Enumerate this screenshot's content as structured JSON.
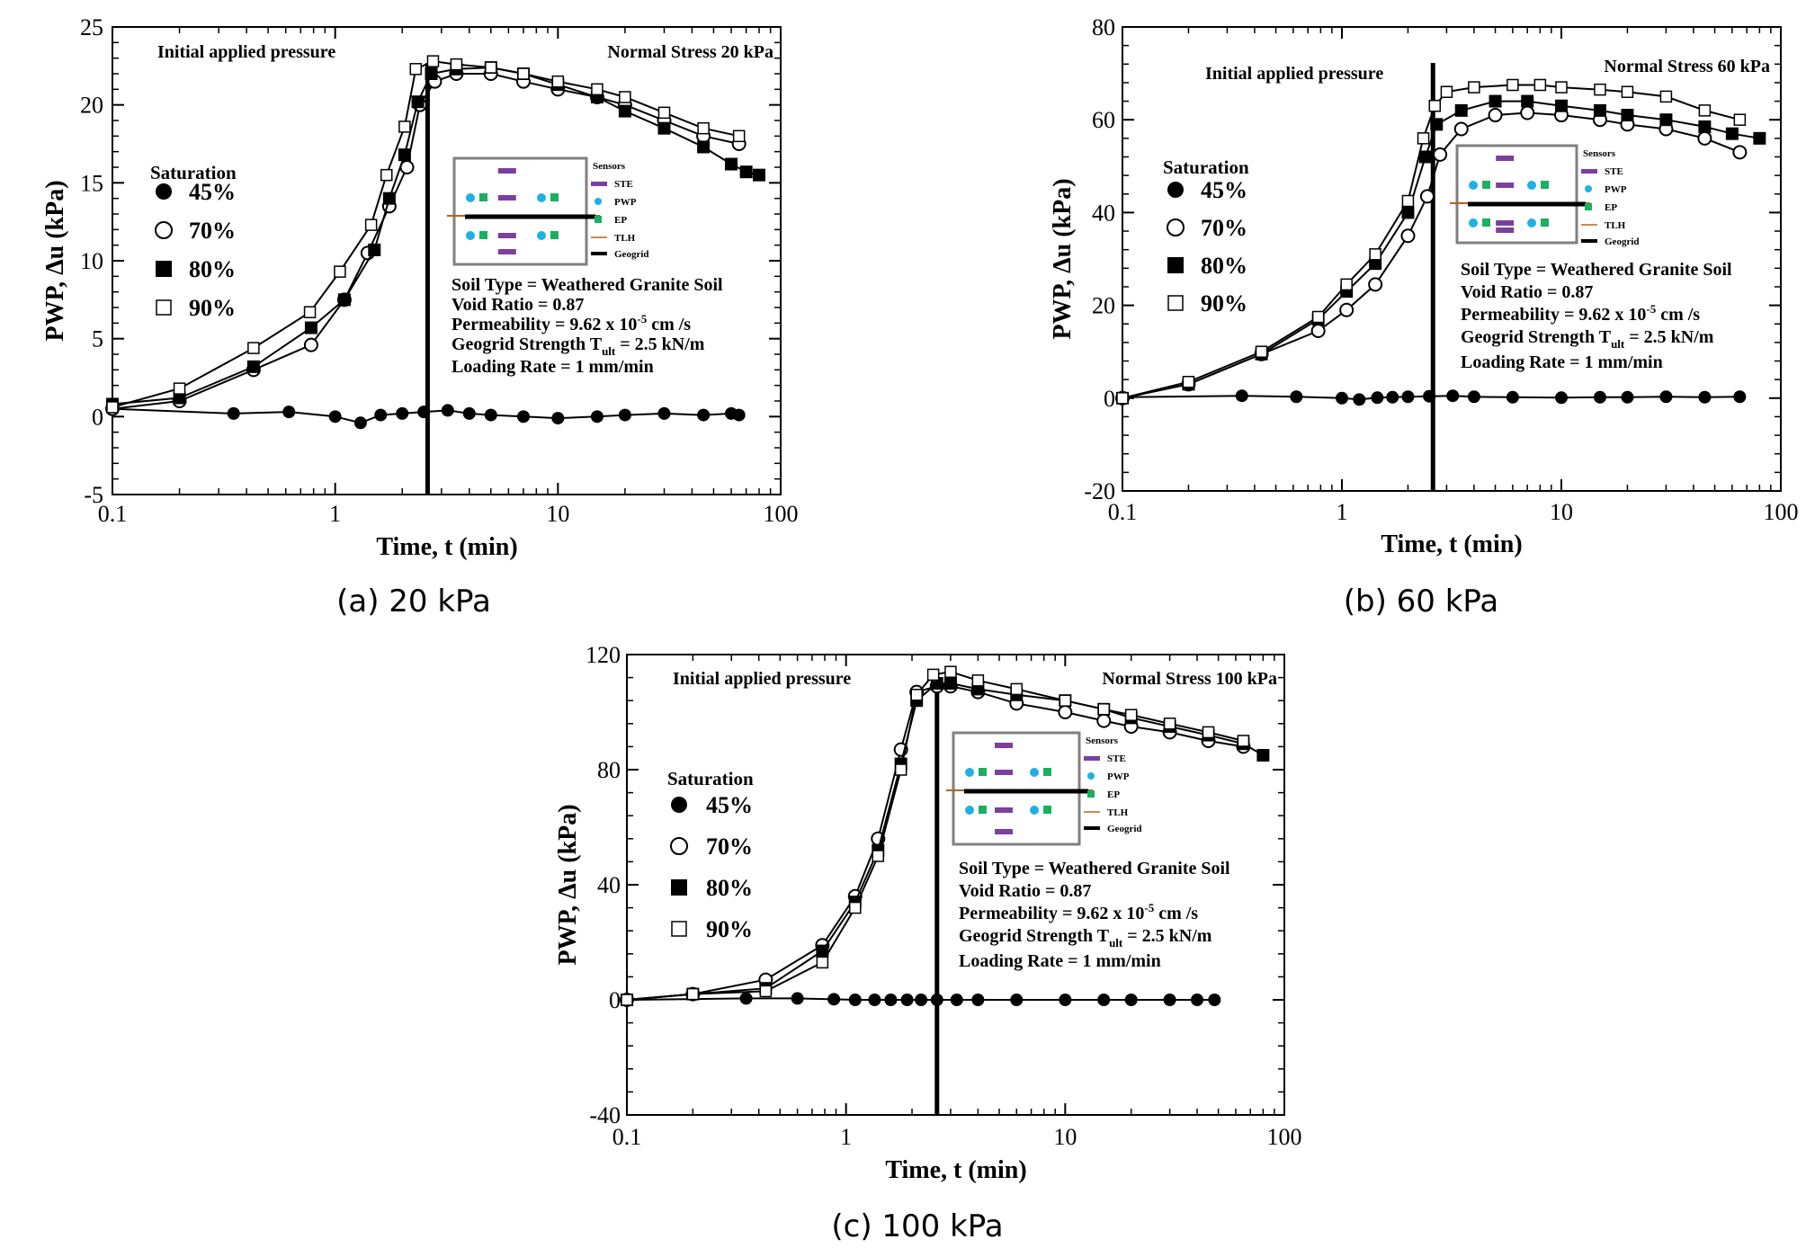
{
  "chart_data": [
    {
      "type": "scatter",
      "caption": "(a) 20 kPa",
      "xscale": "log",
      "xlim": [
        0.1,
        100
      ],
      "ylim": [
        -5,
        25
      ],
      "xticks": [
        "0.1",
        "1",
        "10",
        "100"
      ],
      "yticks": [
        "-5",
        "0",
        "5",
        "10",
        "15",
        "20",
        "25"
      ],
      "xlabel": "Time, t (min)",
      "ylabel": "PWP, Δu (kPa)",
      "note_left": "Initial applied pressure",
      "note_right": "Normal Stress 20 kPa",
      "vline_x": 2.6,
      "series": [
        {
          "name": "45%",
          "marker": "filled-circle",
          "x": [
            0.1,
            0.35,
            0.62,
            1.0,
            1.3,
            1.6,
            2.0,
            2.5,
            3.2,
            4.0,
            5.0,
            7.0,
            10,
            15,
            20,
            30,
            45,
            60,
            65
          ],
          "y": [
            0.5,
            0.2,
            0.3,
            0.0,
            -0.4,
            0.1,
            0.2,
            0.3,
            0.4,
            0.2,
            0.1,
            0.0,
            -0.1,
            0.0,
            0.1,
            0.2,
            0.1,
            0.2,
            0.1
          ]
        },
        {
          "name": "70%",
          "marker": "open-circle",
          "x": [
            0.1,
            0.2,
            0.43,
            0.78,
            1.1,
            1.4,
            1.75,
            2.1,
            2.4,
            2.8,
            3.5,
            5,
            7,
            10,
            15,
            20,
            30,
            45,
            65
          ],
          "y": [
            0.5,
            1.0,
            3.0,
            4.6,
            7.5,
            10.5,
            13.5,
            16.0,
            20.0,
            21.5,
            22.0,
            22.0,
            21.5,
            21.0,
            20.5,
            20.0,
            19.0,
            18.0,
            17.5
          ]
        },
        {
          "name": "80%",
          "marker": "filled-square",
          "x": [
            0.1,
            0.2,
            0.43,
            0.78,
            1.1,
            1.5,
            1.75,
            2.05,
            2.35,
            2.7,
            3.5,
            5,
            7,
            10,
            15,
            20,
            30,
            45,
            60,
            70,
            80
          ],
          "y": [
            0.8,
            1.2,
            3.2,
            5.7,
            7.5,
            10.7,
            14.0,
            16.8,
            20.2,
            22.0,
            22.3,
            22.4,
            22.0,
            21.3,
            20.5,
            19.6,
            18.5,
            17.3,
            16.2,
            15.7,
            15.5
          ]
        },
        {
          "name": "90%",
          "marker": "open-square",
          "x": [
            0.1,
            0.2,
            0.43,
            0.77,
            1.05,
            1.45,
            1.7,
            2.05,
            2.3,
            2.75,
            3.5,
            5,
            7,
            10,
            15,
            20,
            30,
            45,
            65
          ],
          "y": [
            0.6,
            1.8,
            4.4,
            6.7,
            9.3,
            12.3,
            15.5,
            18.6,
            22.3,
            22.8,
            22.6,
            22.4,
            22.0,
            21.5,
            21.0,
            20.5,
            19.5,
            18.5,
            18.0
          ]
        }
      ],
      "legend": {
        "title": "Saturation",
        "entries": [
          "45%",
          "70%",
          "80%",
          "90%"
        ]
      },
      "info": [
        "Soil Type = Weathered Granite Soil",
        "Void Ratio = 0.87",
        "Permeability = 9.62 x 10",
        "-5",
        " cm /s",
        "Geogrid Strength T",
        "ult",
        " = 2.5 kN/m",
        "Loading Rate = 1 mm/min"
      ],
      "sensors": {
        "title": "Sensors",
        "items": [
          "STE",
          "PWP",
          "EP",
          "TLH",
          "Geogrid"
        ]
      }
    },
    {
      "type": "scatter",
      "caption": "(b) 60 kPa",
      "xscale": "log",
      "xlim": [
        0.1,
        100
      ],
      "ylim": [
        -20,
        80
      ],
      "xticks": [
        "0.1",
        "1",
        "10",
        "100"
      ],
      "yticks": [
        "-20",
        "0",
        "20",
        "40",
        "60",
        "80"
      ],
      "xlabel": "Time, t (min)",
      "ylabel": "PWP, Δu (kPa)",
      "note_left": "Initial applied pressure",
      "note_right": "Normal Stress 60 kPa",
      "vline_x": 2.6,
      "series": [
        {
          "name": "45%",
          "marker": "filled-circle",
          "x": [
            0.1,
            0.35,
            0.62,
            1.0,
            1.2,
            1.45,
            1.7,
            2.0,
            2.5,
            3.2,
            4,
            6,
            10,
            15,
            20,
            30,
            45,
            65
          ],
          "y": [
            0.2,
            0.5,
            0.3,
            0.0,
            -0.3,
            0.1,
            0.2,
            0.3,
            0.4,
            0.5,
            0.3,
            0.2,
            0.1,
            0.2,
            0.2,
            0.3,
            0.2,
            0.3
          ]
        },
        {
          "name": "70%",
          "marker": "open-circle",
          "x": [
            0.1,
            0.2,
            0.43,
            0.78,
            1.05,
            1.42,
            2.0,
            2.45,
            2.8,
            3.5,
            5,
            7,
            10,
            15,
            20,
            30,
            45,
            65
          ],
          "y": [
            0.0,
            3.0,
            9.5,
            14.5,
            19.0,
            24.5,
            35.0,
            43.5,
            52.5,
            58.0,
            61.0,
            61.5,
            61.0,
            60.0,
            59.0,
            58.0,
            56.0,
            53.0
          ]
        },
        {
          "name": "80%",
          "marker": "filled-square",
          "x": [
            0.1,
            0.2,
            0.43,
            0.78,
            1.05,
            1.42,
            2.0,
            2.4,
            2.7,
            3.5,
            5,
            7,
            10,
            15,
            20,
            30,
            45,
            60,
            80
          ],
          "y": [
            0.0,
            3.0,
            9.5,
            17.0,
            23.0,
            29.0,
            40.0,
            52.0,
            59.0,
            62.0,
            64.0,
            64.0,
            63.0,
            62.0,
            61.0,
            60.0,
            58.5,
            57.0,
            56.0
          ]
        },
        {
          "name": "90%",
          "marker": "open-square",
          "x": [
            0.1,
            0.2,
            0.43,
            0.78,
            1.05,
            1.42,
            2.0,
            2.35,
            2.65,
            3.0,
            4,
            6,
            8,
            10,
            15,
            20,
            30,
            45,
            65
          ],
          "y": [
            0.0,
            3.5,
            10.0,
            17.5,
            24.5,
            31.0,
            42.5,
            56.0,
            63.0,
            66.0,
            67.0,
            67.5,
            67.5,
            67.0,
            66.5,
            66.0,
            65.0,
            62.0,
            60.0
          ]
        }
      ],
      "legend": {
        "title": "Saturation",
        "entries": [
          "45%",
          "70%",
          "80%",
          "90%"
        ]
      },
      "info": [
        "Soil Type = Weathered Granite Soil",
        "Void Ratio = 0.87",
        "Permeability = 9.62 x 10",
        "-5",
        " cm /s",
        "Geogrid Strength T",
        "ult",
        " = 2.5 kN/m",
        "Loading Rate = 1 mm/min"
      ],
      "sensors": {
        "title": "Sensors",
        "items": [
          "STE",
          "PWP",
          "EP",
          "TLH",
          "Geogrid"
        ]
      }
    },
    {
      "type": "scatter",
      "caption": "(c) 100 kPa",
      "xscale": "log",
      "xlim": [
        0.1,
        100
      ],
      "ylim": [
        -40,
        120
      ],
      "xticks": [
        "0.1",
        "1",
        "10",
        "100"
      ],
      "yticks": [
        "-40",
        "0",
        "40",
        "80",
        "120"
      ],
      "xlabel": "Time, t (min)",
      "ylabel": "PWP, Δu (kPa)",
      "note_left": "Initial applied pressure",
      "note_right": "Normal Stress 100 kPa",
      "vline_x": 2.6,
      "series": [
        {
          "name": "45%",
          "marker": "filled-circle",
          "x": [
            0.1,
            0.35,
            0.6,
            0.88,
            1.1,
            1.35,
            1.6,
            1.9,
            2.2,
            2.6,
            3.2,
            4,
            6,
            10,
            15,
            20,
            30,
            40,
            48
          ],
          "y": [
            0.0,
            0.5,
            0.5,
            0.2,
            0.0,
            0.0,
            0.0,
            0.0,
            0.0,
            0.0,
            0.0,
            0.0,
            0.0,
            0.0,
            0.0,
            0.0,
            0.0,
            0.0,
            0.0
          ]
        },
        {
          "name": "70%",
          "marker": "open-circle",
          "x": [
            0.1,
            0.2,
            0.43,
            0.78,
            1.1,
            1.4,
            1.78,
            2.1,
            2.6,
            3.0,
            4,
            6,
            10,
            15,
            20,
            30,
            45,
            65
          ],
          "y": [
            0.0,
            2.0,
            7.0,
            19.0,
            36.0,
            56.0,
            87.0,
            107.0,
            109.0,
            109.0,
            107.0,
            103.0,
            100.0,
            97.0,
            95.0,
            93.0,
            90.0,
            88.0
          ]
        },
        {
          "name": "80%",
          "marker": "filled-square",
          "x": [
            0.1,
            0.2,
            0.43,
            0.78,
            1.1,
            1.4,
            1.78,
            2.1,
            2.6,
            3.0,
            4,
            6,
            10,
            15,
            20,
            30,
            45,
            65,
            80
          ],
          "y": [
            0.0,
            2.0,
            4.0,
            17.0,
            34.0,
            52.0,
            82.0,
            104.0,
            110.0,
            110.0,
            108.0,
            106.0,
            104.0,
            101.0,
            98.0,
            95.0,
            92.0,
            89.0,
            85.0
          ]
        },
        {
          "name": "90%",
          "marker": "open-square",
          "x": [
            0.1,
            0.2,
            0.43,
            0.78,
            1.1,
            1.4,
            1.78,
            2.1,
            2.5,
            3.0,
            4,
            6,
            10,
            15,
            20,
            30,
            45,
            65
          ],
          "y": [
            0.0,
            2.0,
            3.0,
            13.0,
            32.0,
            50.0,
            80.0,
            106.0,
            113.0,
            114.0,
            111.0,
            108.0,
            104.0,
            101.0,
            99.0,
            96.0,
            93.0,
            90.0
          ]
        }
      ],
      "legend": {
        "title": "Saturation",
        "entries": [
          "45%",
          "70%",
          "80%",
          "90%"
        ]
      },
      "info": [
        "Soil Type = Weathered Granite Soil",
        "Void Ratio = 0.87",
        "Permeability = 9.62 x 10",
        "-5",
        " cm /s",
        "Geogrid Strength T",
        "ult",
        " = 2.5 kN/m",
        "Loading Rate = 1 mm/min"
      ],
      "sensors": {
        "title": "Sensors",
        "items": [
          "STE",
          "PWP",
          "EP",
          "TLH",
          "Geogrid"
        ]
      }
    }
  ],
  "colors": {
    "ste": "#7b3fa0",
    "pwp": "#1fb0e6",
    "ep": "#19b060",
    "tlh": "#b5651d",
    "frame": "#808080"
  }
}
